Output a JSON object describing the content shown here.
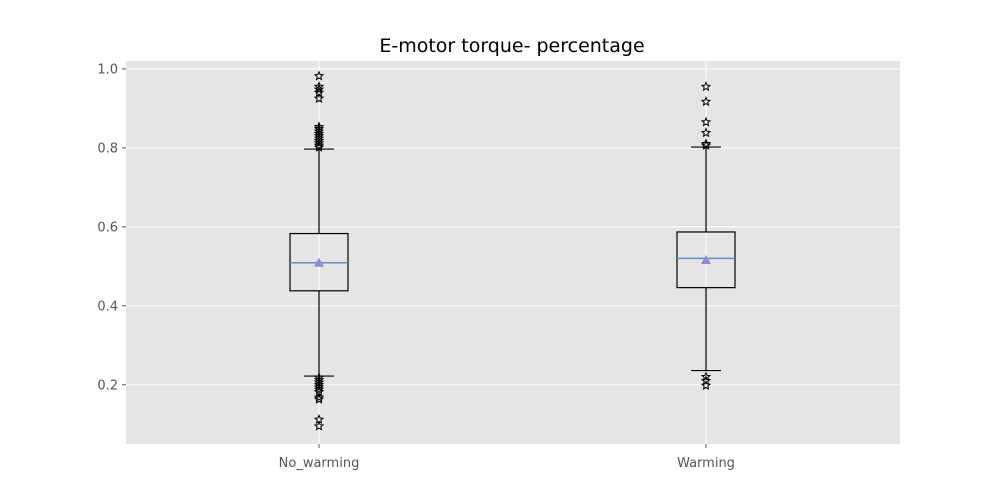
{
  "chart_data": {
    "type": "boxplot",
    "title": "E-motor torque- percentage",
    "xlabel": "",
    "ylabel": "",
    "categories": [
      "No_warming",
      "Warming"
    ],
    "ylim": [
      0.05,
      1.02
    ],
    "yticks": [
      0.2,
      0.4,
      0.6,
      0.8,
      1.0
    ],
    "ytick_labels": [
      "0.2",
      "0.4",
      "0.6",
      "0.8",
      "1.0"
    ],
    "grid": true,
    "colors": {
      "plot_background": "#e5e5e5",
      "grid": "#ffffff",
      "box": "#000000",
      "median": "#5a8fc8",
      "mean_marker": "#8e8ad4",
      "flier": "#000000"
    },
    "boxes": [
      {
        "name": "No_warming",
        "whisker_low": 0.222,
        "q1": 0.438,
        "median": 0.509,
        "q3": 0.583,
        "whisker_high": 0.797,
        "mean": 0.509,
        "fliers": [
          0.982,
          0.955,
          0.948,
          0.94,
          0.925,
          0.853,
          0.848,
          0.842,
          0.836,
          0.83,
          0.824,
          0.818,
          0.812,
          0.806,
          0.801,
          0.218,
          0.212,
          0.206,
          0.2,
          0.194,
          0.188,
          0.182,
          0.168,
          0.163,
          0.112,
          0.095
        ]
      },
      {
        "name": "Warming",
        "whisker_low": 0.236,
        "q1": 0.446,
        "median": 0.52,
        "q3": 0.587,
        "whisker_high": 0.802,
        "mean": 0.516,
        "fliers": [
          0.955,
          0.917,
          0.865,
          0.838,
          0.81,
          0.806,
          0.22,
          0.21,
          0.198
        ]
      }
    ]
  }
}
